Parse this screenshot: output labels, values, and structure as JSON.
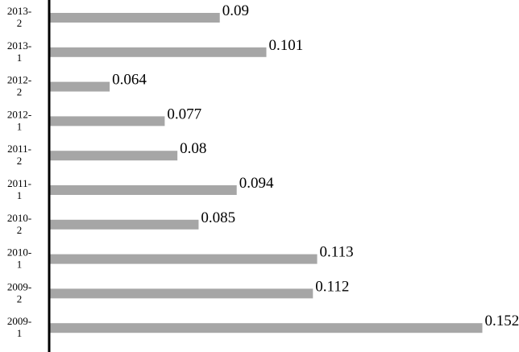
{
  "chart_data": {
    "type": "bar",
    "orientation": "horizontal",
    "title": "",
    "xlabel": "",
    "ylabel": "",
    "categories": [
      [
        "2013-",
        "2"
      ],
      [
        "2013-",
        "1"
      ],
      [
        "2012-",
        "2"
      ],
      [
        "2012-",
        "1"
      ],
      [
        "2011-",
        "2"
      ],
      [
        "2011-",
        "1"
      ],
      [
        "2010-",
        "2"
      ],
      [
        "2010-",
        "1"
      ],
      [
        "2009-",
        "2"
      ],
      [
        "2009-",
        "1"
      ]
    ],
    "values": [
      0.09,
      0.101,
      0.064,
      0.077,
      0.08,
      0.094,
      0.085,
      0.113,
      0.112,
      0.152
    ],
    "value_labels": [
      "0.09",
      "0.101",
      "0.064",
      "0.077",
      "0.08",
      "0.094",
      "0.085",
      "0.113",
      "0.112",
      "0.152"
    ],
    "xlim": [
      0.05,
      0.152
    ],
    "grid": false,
    "legend": "none",
    "colors": {
      "bar": "#a6a6a6",
      "axis": "#000000",
      "text": "#000000"
    }
  }
}
